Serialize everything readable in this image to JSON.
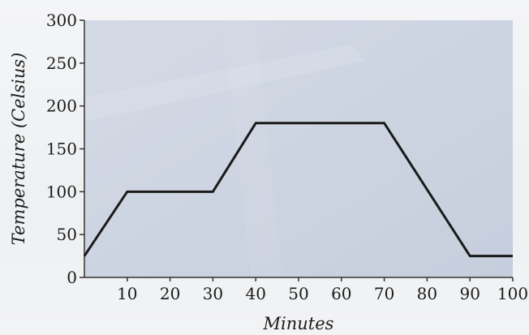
{
  "chart_data": {
    "type": "line",
    "title": "",
    "xlabel": "Minutes",
    "ylabel": "Temperature (Celsius)",
    "xlim": [
      0,
      100
    ],
    "ylim": [
      0,
      300
    ],
    "x_ticks": [
      10,
      20,
      30,
      40,
      50,
      60,
      70,
      80,
      90,
      100
    ],
    "y_ticks": [
      0,
      50,
      100,
      150,
      200,
      250,
      300
    ],
    "grid": false,
    "series": [
      {
        "x": [
          0,
          10,
          30,
          40,
          70,
          90,
          100
        ],
        "y": [
          25,
          100,
          100,
          180,
          180,
          25,
          25
        ]
      }
    ],
    "colors": {
      "plot_background": "#c6cedd",
      "line": "#1a1a1a",
      "axis": "#333333"
    }
  }
}
